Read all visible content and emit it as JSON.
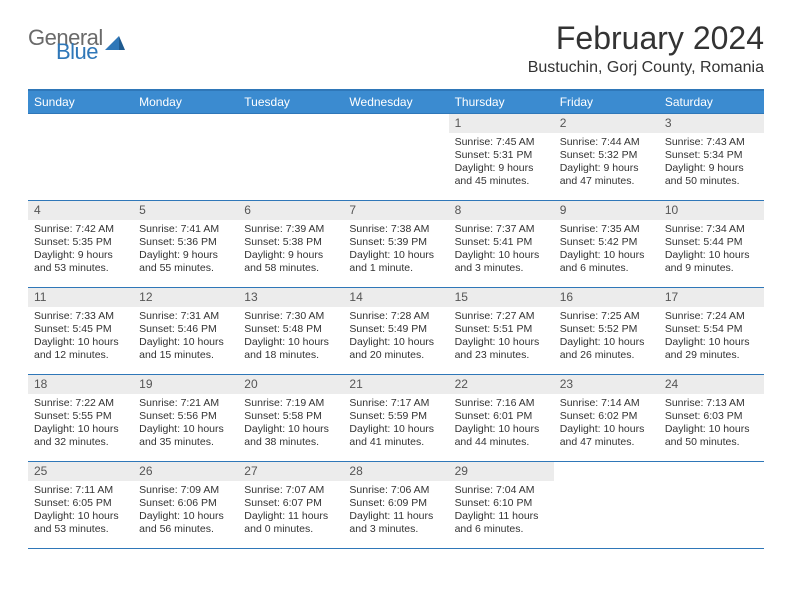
{
  "logo": {
    "text1": "General",
    "text2": "Blue"
  },
  "title": "February 2024",
  "location": "Bustuchin, Gorj County, Romania",
  "colors": {
    "header_bg": "#3b8bd0",
    "border": "#2f77b8",
    "daynum_bg": "#ececec",
    "text": "#333333",
    "logo_gray": "#6a6a6a",
    "logo_blue": "#2f77b8"
  },
  "weekdays": [
    "Sunday",
    "Monday",
    "Tuesday",
    "Wednesday",
    "Thursday",
    "Friday",
    "Saturday"
  ],
  "weeks": [
    [
      {
        "empty": true
      },
      {
        "empty": true
      },
      {
        "empty": true
      },
      {
        "empty": true
      },
      {
        "num": "1",
        "sunrise": "Sunrise: 7:45 AM",
        "sunset": "Sunset: 5:31 PM",
        "daylight1": "Daylight: 9 hours",
        "daylight2": "and 45 minutes."
      },
      {
        "num": "2",
        "sunrise": "Sunrise: 7:44 AM",
        "sunset": "Sunset: 5:32 PM",
        "daylight1": "Daylight: 9 hours",
        "daylight2": "and 47 minutes."
      },
      {
        "num": "3",
        "sunrise": "Sunrise: 7:43 AM",
        "sunset": "Sunset: 5:34 PM",
        "daylight1": "Daylight: 9 hours",
        "daylight2": "and 50 minutes."
      }
    ],
    [
      {
        "num": "4",
        "sunrise": "Sunrise: 7:42 AM",
        "sunset": "Sunset: 5:35 PM",
        "daylight1": "Daylight: 9 hours",
        "daylight2": "and 53 minutes."
      },
      {
        "num": "5",
        "sunrise": "Sunrise: 7:41 AM",
        "sunset": "Sunset: 5:36 PM",
        "daylight1": "Daylight: 9 hours",
        "daylight2": "and 55 minutes."
      },
      {
        "num": "6",
        "sunrise": "Sunrise: 7:39 AM",
        "sunset": "Sunset: 5:38 PM",
        "daylight1": "Daylight: 9 hours",
        "daylight2": "and 58 minutes."
      },
      {
        "num": "7",
        "sunrise": "Sunrise: 7:38 AM",
        "sunset": "Sunset: 5:39 PM",
        "daylight1": "Daylight: 10 hours",
        "daylight2": "and 1 minute."
      },
      {
        "num": "8",
        "sunrise": "Sunrise: 7:37 AM",
        "sunset": "Sunset: 5:41 PM",
        "daylight1": "Daylight: 10 hours",
        "daylight2": "and 3 minutes."
      },
      {
        "num": "9",
        "sunrise": "Sunrise: 7:35 AM",
        "sunset": "Sunset: 5:42 PM",
        "daylight1": "Daylight: 10 hours",
        "daylight2": "and 6 minutes."
      },
      {
        "num": "10",
        "sunrise": "Sunrise: 7:34 AM",
        "sunset": "Sunset: 5:44 PM",
        "daylight1": "Daylight: 10 hours",
        "daylight2": "and 9 minutes."
      }
    ],
    [
      {
        "num": "11",
        "sunrise": "Sunrise: 7:33 AM",
        "sunset": "Sunset: 5:45 PM",
        "daylight1": "Daylight: 10 hours",
        "daylight2": "and 12 minutes."
      },
      {
        "num": "12",
        "sunrise": "Sunrise: 7:31 AM",
        "sunset": "Sunset: 5:46 PM",
        "daylight1": "Daylight: 10 hours",
        "daylight2": "and 15 minutes."
      },
      {
        "num": "13",
        "sunrise": "Sunrise: 7:30 AM",
        "sunset": "Sunset: 5:48 PM",
        "daylight1": "Daylight: 10 hours",
        "daylight2": "and 18 minutes."
      },
      {
        "num": "14",
        "sunrise": "Sunrise: 7:28 AM",
        "sunset": "Sunset: 5:49 PM",
        "daylight1": "Daylight: 10 hours",
        "daylight2": "and 20 minutes."
      },
      {
        "num": "15",
        "sunrise": "Sunrise: 7:27 AM",
        "sunset": "Sunset: 5:51 PM",
        "daylight1": "Daylight: 10 hours",
        "daylight2": "and 23 minutes."
      },
      {
        "num": "16",
        "sunrise": "Sunrise: 7:25 AM",
        "sunset": "Sunset: 5:52 PM",
        "daylight1": "Daylight: 10 hours",
        "daylight2": "and 26 minutes."
      },
      {
        "num": "17",
        "sunrise": "Sunrise: 7:24 AM",
        "sunset": "Sunset: 5:54 PM",
        "daylight1": "Daylight: 10 hours",
        "daylight2": "and 29 minutes."
      }
    ],
    [
      {
        "num": "18",
        "sunrise": "Sunrise: 7:22 AM",
        "sunset": "Sunset: 5:55 PM",
        "daylight1": "Daylight: 10 hours",
        "daylight2": "and 32 minutes."
      },
      {
        "num": "19",
        "sunrise": "Sunrise: 7:21 AM",
        "sunset": "Sunset: 5:56 PM",
        "daylight1": "Daylight: 10 hours",
        "daylight2": "and 35 minutes."
      },
      {
        "num": "20",
        "sunrise": "Sunrise: 7:19 AM",
        "sunset": "Sunset: 5:58 PM",
        "daylight1": "Daylight: 10 hours",
        "daylight2": "and 38 minutes."
      },
      {
        "num": "21",
        "sunrise": "Sunrise: 7:17 AM",
        "sunset": "Sunset: 5:59 PM",
        "daylight1": "Daylight: 10 hours",
        "daylight2": "and 41 minutes."
      },
      {
        "num": "22",
        "sunrise": "Sunrise: 7:16 AM",
        "sunset": "Sunset: 6:01 PM",
        "daylight1": "Daylight: 10 hours",
        "daylight2": "and 44 minutes."
      },
      {
        "num": "23",
        "sunrise": "Sunrise: 7:14 AM",
        "sunset": "Sunset: 6:02 PM",
        "daylight1": "Daylight: 10 hours",
        "daylight2": "and 47 minutes."
      },
      {
        "num": "24",
        "sunrise": "Sunrise: 7:13 AM",
        "sunset": "Sunset: 6:03 PM",
        "daylight1": "Daylight: 10 hours",
        "daylight2": "and 50 minutes."
      }
    ],
    [
      {
        "num": "25",
        "sunrise": "Sunrise: 7:11 AM",
        "sunset": "Sunset: 6:05 PM",
        "daylight1": "Daylight: 10 hours",
        "daylight2": "and 53 minutes."
      },
      {
        "num": "26",
        "sunrise": "Sunrise: 7:09 AM",
        "sunset": "Sunset: 6:06 PM",
        "daylight1": "Daylight: 10 hours",
        "daylight2": "and 56 minutes."
      },
      {
        "num": "27",
        "sunrise": "Sunrise: 7:07 AM",
        "sunset": "Sunset: 6:07 PM",
        "daylight1": "Daylight: 11 hours",
        "daylight2": "and 0 minutes."
      },
      {
        "num": "28",
        "sunrise": "Sunrise: 7:06 AM",
        "sunset": "Sunset: 6:09 PM",
        "daylight1": "Daylight: 11 hours",
        "daylight2": "and 3 minutes."
      },
      {
        "num": "29",
        "sunrise": "Sunrise: 7:04 AM",
        "sunset": "Sunset: 6:10 PM",
        "daylight1": "Daylight: 11 hours",
        "daylight2": "and 6 minutes."
      },
      {
        "empty": true
      },
      {
        "empty": true
      }
    ]
  ]
}
